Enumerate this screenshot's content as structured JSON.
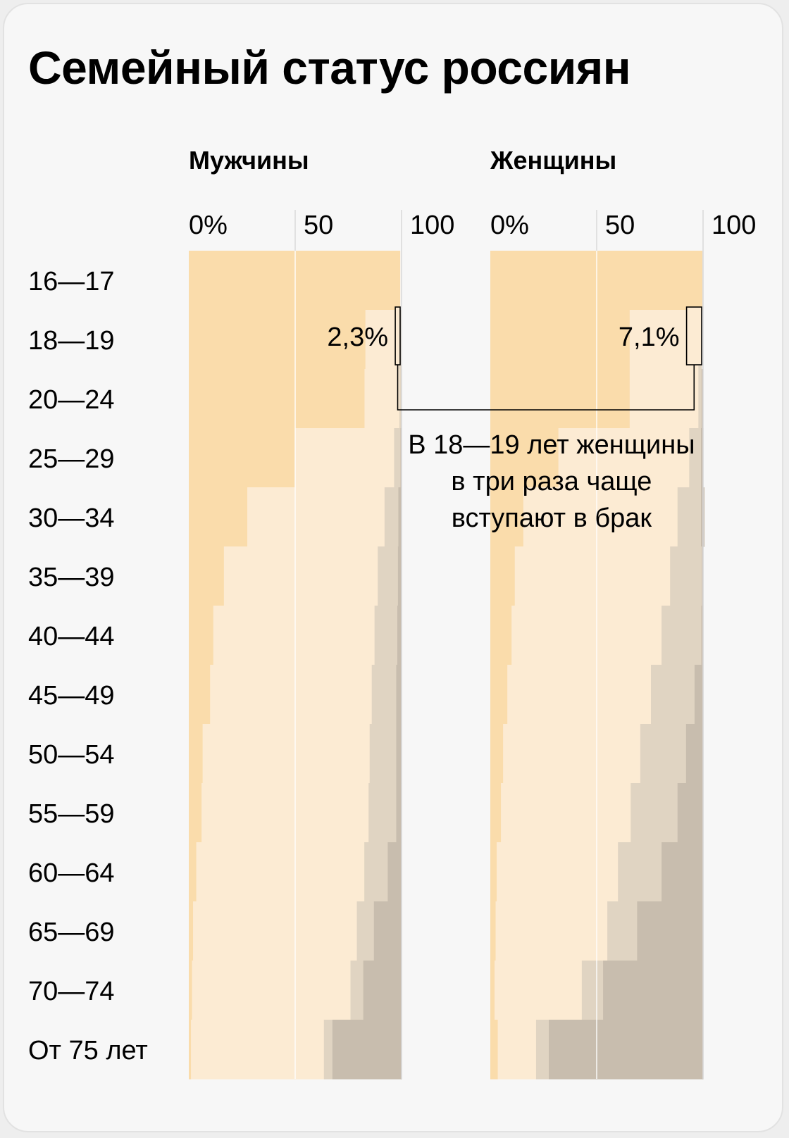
{
  "title": "Семейный статус россиян",
  "chart_data": {
    "type": "bar",
    "stacked": true,
    "orientation": "horizontal",
    "title": "Семейный статус россиян",
    "x_ticks": [
      "0%",
      "50",
      "100"
    ],
    "xlim": [
      0,
      100
    ],
    "categories": [
      "16—17",
      "18—19",
      "20—24",
      "25—29",
      "30—34",
      "35—39",
      "40—44",
      "45—49",
      "50—54",
      "55—59",
      "60—64",
      "65—69",
      "70—74",
      "От 75 лет"
    ],
    "segment_colors": [
      "#fadcab",
      "#fcebd3",
      "#e0d4c2",
      "#c8bdae"
    ],
    "panels": [
      {
        "label": "Мужчины",
        "series": [
          {
            "values": [
              99.2,
              83.0,
              82.6,
              50.0,
              27.5,
              16.5,
              11.5,
              10.0,
              6.5,
              6.0,
              3.5,
              2.0,
              1.5,
              1.0
            ]
          },
          {
            "values": [
              0,
              15.8,
              16.4,
              46.5,
              64.5,
              72.3,
              75.8,
              76.0,
              78.5,
              78.5,
              79.0,
              77.0,
              74.5,
              62.5
            ]
          },
          {
            "values": [
              0,
              1.0,
              1.0,
              3.0,
              6.5,
              9.5,
              10.7,
              11.5,
              12.5,
              13.0,
              11.0,
              8.0,
              6.0,
              4.0
            ]
          },
          {
            "values": [
              0,
              0,
              0,
              0.5,
              1.5,
              1.7,
              2.0,
              2.5,
              2.5,
              2.5,
              6.5,
              13.0,
              18.0,
              32.5
            ]
          }
        ]
      },
      {
        "label": "Женщины",
        "series": [
          {
            "values": [
              99.5,
              65.5,
              65.5,
              32.0,
              15.5,
              11.5,
              10.0,
              8.0,
              6.0,
              5.0,
              3.0,
              2.5,
              2.0,
              3.5
            ]
          },
          {
            "values": [
              0,
              32.3,
              32.3,
              61.5,
              72.5,
              73.0,
              70.5,
              67.5,
              64.5,
              61.0,
              57.0,
              52.5,
              41.0,
              18.0
            ]
          },
          {
            "values": [
              0,
              1.5,
              1.5,
              5.5,
              11.0,
              15.0,
              18.7,
              20.5,
              21.5,
              22.0,
              20.5,
              14.0,
              10.0,
              6.0
            ]
          },
          {
            "values": [
              0,
              0,
              0.5,
              1.0,
              1.5,
              0.5,
              0.8,
              4.0,
              8.0,
              12.0,
              19.5,
              31.0,
              47.0,
              72.5
            ]
          }
        ]
      }
    ],
    "annotations": [
      {
        "label": "2,3%",
        "panel": 0,
        "category": "18—19",
        "value": 2.3
      },
      {
        "label": "7,1%",
        "panel": 1,
        "category": "18—19",
        "value": 7.1
      }
    ],
    "note_lines": [
      "В 18—19 лет женщины",
      "в три раза чаще",
      "вступают в брак"
    ]
  }
}
